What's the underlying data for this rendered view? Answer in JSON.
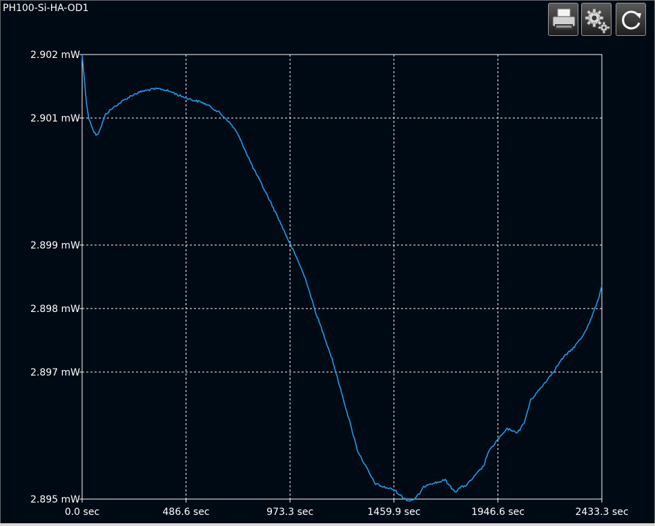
{
  "window": {
    "title": "PH100-Si-HA-OD1"
  },
  "toolbar": {
    "print_icon": "printer-icon",
    "settings_icon": "gear-icon",
    "refresh_icon": "refresh-icon"
  },
  "colors": {
    "background": "#000a14",
    "plot_border": "#ffffff",
    "grid": "#ffffff",
    "line": "#1e9be8",
    "text": "#ffffff"
  },
  "chart_data": {
    "type": "line",
    "title": "",
    "xlabel": "",
    "ylabel": "",
    "xlim": [
      0,
      2433.3
    ],
    "ylim": [
      2.895,
      2.902
    ],
    "grid": true,
    "x_ticks": [
      0,
      486.6,
      973.3,
      1459.9,
      1946.6,
      2433.3
    ],
    "x_tick_labels": [
      "0.0 sec",
      "486.6 sec",
      "973.3 sec",
      "1459.9 sec",
      "1946.6 sec",
      "2433.3 sec"
    ],
    "y_ticks": [
      2.895,
      2.897,
      2.898,
      2.899,
      2.901,
      2.902
    ],
    "y_tick_labels": [
      "2.895 mW",
      "2.897 mW",
      "2.898 mW",
      "2.899 mW",
      "2.901 mW",
      "2.902 mW"
    ],
    "series": [
      {
        "x": [
          0,
          10,
          20,
          32,
          45,
          55,
          65,
          75,
          85,
          95,
          110,
          130,
          160,
          200,
          240,
          280,
          320,
          360,
          390,
          420,
          450,
          486.6,
          520,
          560,
          600,
          640,
          680,
          720,
          760,
          800,
          840,
          880,
          920,
          973.3,
          1010,
          1050,
          1090,
          1130,
          1170,
          1210,
          1250,
          1290,
          1330,
          1370,
          1410,
          1459.9,
          1500,
          1530,
          1560,
          1580,
          1600,
          1620,
          1660,
          1700,
          1730,
          1750,
          1770,
          1800,
          1840,
          1880,
          1900,
          1946.6,
          1990,
          2010,
          2030,
          2050,
          2070,
          2100,
          2150,
          2200,
          2250,
          2300,
          2340,
          2380,
          2410,
          2420,
          2433.3
        ],
        "y": [
          2.902,
          2.90163,
          2.90124,
          2.90098,
          2.90088,
          2.90078,
          2.90074,
          2.90076,
          2.90083,
          2.90092,
          2.90106,
          2.90112,
          2.9012,
          2.90129,
          2.90137,
          2.90142,
          2.90145,
          2.90146,
          2.90144,
          2.90141,
          2.90136,
          2.90132,
          2.90128,
          2.90125,
          2.90118,
          2.90109,
          2.90097,
          2.9008,
          2.90052,
          2.90022,
          2.89996,
          2.89969,
          2.89941,
          2.89902,
          2.89876,
          2.89843,
          2.89797,
          2.8976,
          2.89721,
          2.89673,
          2.89625,
          2.89576,
          2.8955,
          2.89525,
          2.89519,
          2.89515,
          2.89503,
          2.89497,
          2.89501,
          2.89509,
          2.89519,
          2.89524,
          2.89526,
          2.8953,
          2.89517,
          2.89512,
          2.89518,
          2.89522,
          2.89537,
          2.89552,
          2.89573,
          2.89594,
          2.8961,
          2.89609,
          2.89604,
          2.8961,
          2.8962,
          2.89656,
          2.89676,
          2.89698,
          2.89722,
          2.89738,
          2.89755,
          2.89781,
          2.89809,
          2.89819,
          2.89837
        ]
      }
    ]
  }
}
